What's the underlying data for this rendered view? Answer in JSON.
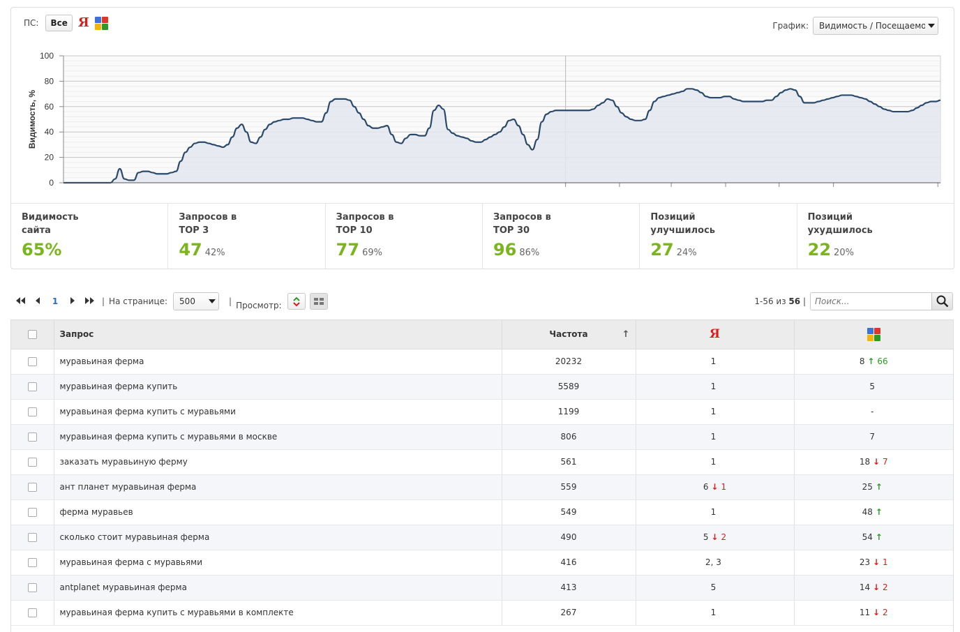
{
  "filter": {
    "ps_label": "ПС:",
    "all_label": "Все",
    "yandex_letter": "Я"
  },
  "graph_select": {
    "label": "График:",
    "value": "Видимость / Посещаемость"
  },
  "chart_data": {
    "type": "area",
    "ylabel": "Видимость, %",
    "ylim": [
      0,
      100
    ],
    "yticks": [
      "0",
      "20",
      "40",
      "60",
      "80",
      "100"
    ],
    "values": [
      0,
      0,
      0,
      0,
      0,
      0,
      0,
      0,
      0,
      0,
      0,
      3,
      11,
      3,
      2,
      2,
      8,
      9,
      9,
      8,
      7,
      7,
      7,
      8,
      9,
      17,
      24,
      28,
      31,
      32,
      32,
      31,
      30,
      29,
      28,
      30,
      36,
      43,
      46,
      40,
      32,
      31,
      36,
      42,
      46,
      48,
      49,
      50,
      50,
      51,
      51,
      51,
      50,
      49,
      48,
      48,
      55,
      64,
      66,
      66,
      66,
      65,
      60,
      55,
      50,
      45,
      43,
      43,
      44,
      45,
      38,
      32,
      31,
      35,
      38,
      38,
      37,
      37,
      43,
      57,
      61,
      58,
      42,
      39,
      37,
      36,
      35,
      33,
      32,
      32,
      34,
      36,
      38,
      40,
      44,
      49,
      50,
      45,
      38,
      30,
      26,
      34,
      48,
      54,
      56,
      57,
      57,
      57,
      57,
      57,
      57,
      57,
      57,
      58,
      61,
      63,
      66,
      65,
      60,
      55,
      52,
      50,
      49,
      49,
      50,
      57,
      64,
      67,
      68,
      69,
      70,
      71,
      72,
      74,
      74,
      73,
      71,
      68,
      67,
      67,
      67,
      68,
      68,
      66,
      65,
      64,
      64,
      64,
      64,
      64,
      65,
      65,
      68,
      71,
      73,
      74,
      73,
      68,
      63,
      63,
      63,
      64,
      65,
      66,
      67,
      68,
      69,
      69,
      69,
      68,
      67,
      66,
      64,
      62,
      60,
      58,
      57,
      56,
      56,
      56,
      56,
      57,
      59,
      61,
      63,
      64,
      64,
      65
    ]
  },
  "stats": [
    {
      "title": "Видимость сайта",
      "value": "65%",
      "pct": ""
    },
    {
      "title": "Запросов в TOP 3",
      "value": "47",
      "pct": "42%"
    },
    {
      "title": "Запросов в TOP 10",
      "value": "77",
      "pct": "69%"
    },
    {
      "title": "Запросов в TOP 30",
      "value": "96",
      "pct": "86%"
    },
    {
      "title": "Позиций улучшилось",
      "value": "27",
      "pct": "24%"
    },
    {
      "title": "Позиций ухудшилось",
      "value": "22",
      "pct": "20%"
    }
  ],
  "toolbar": {
    "page": "1",
    "sep": "|",
    "per_page_label": "На странице:",
    "per_page_value": "500",
    "view_label": "Просмотр:",
    "range": "1-56 из",
    "total": "56",
    "search_placeholder": "Поиск..."
  },
  "table": {
    "headers": {
      "query": "Запрос",
      "freq": "Частота",
      "sort_arrow": "↑",
      "yandex": "Я"
    },
    "rows": [
      {
        "q": "муравьиная ферма",
        "f": "20232",
        "y": "1",
        "y_dir": "",
        "y_delta": "",
        "g": "8",
        "g_dir": "up",
        "g_delta": "66"
      },
      {
        "q": "муравьиная ферма купить",
        "f": "5589",
        "y": "1",
        "y_dir": "",
        "y_delta": "",
        "g": "5",
        "g_dir": "",
        "g_delta": ""
      },
      {
        "q": "муравьиная ферма купить с муравьями",
        "f": "1199",
        "y": "1",
        "y_dir": "",
        "y_delta": "",
        "g": "-",
        "g_dir": "",
        "g_delta": ""
      },
      {
        "q": "муравьиная ферма купить с муравьями в москве",
        "f": "806",
        "y": "1",
        "y_dir": "",
        "y_delta": "",
        "g": "7",
        "g_dir": "",
        "g_delta": ""
      },
      {
        "q": "заказать муравьиную ферму",
        "f": "561",
        "y": "1",
        "y_dir": "",
        "y_delta": "",
        "g": "18",
        "g_dir": "down",
        "g_delta": "7"
      },
      {
        "q": "ант планет муравьиная ферма",
        "f": "559",
        "y": "6",
        "y_dir": "down",
        "y_delta": "1",
        "g": "25",
        "g_dir": "up",
        "g_delta": ""
      },
      {
        "q": "ферма муравьев",
        "f": "549",
        "y": "1",
        "y_dir": "",
        "y_delta": "",
        "g": "48",
        "g_dir": "up",
        "g_delta": ""
      },
      {
        "q": "сколько стоит муравьиная ферма",
        "f": "490",
        "y": "5",
        "y_dir": "down",
        "y_delta": "2",
        "g": "54",
        "g_dir": "up",
        "g_delta": ""
      },
      {
        "q": "муравьиная ферма с муравьями",
        "f": "416",
        "y": "2, 3",
        "y_dir": "",
        "y_delta": "",
        "g": "23",
        "g_dir": "down",
        "g_delta": "1"
      },
      {
        "q": "antplanet муравьиная ферма",
        "f": "413",
        "y": "5",
        "y_dir": "",
        "y_delta": "",
        "g": "14",
        "g_dir": "down",
        "g_delta": "2"
      },
      {
        "q": "муравьиная ферма купить с муравьями в комплекте",
        "f": "267",
        "y": "1",
        "y_dir": "",
        "y_delta": "",
        "g": "11",
        "g_dir": "down",
        "g_delta": "2"
      }
    ]
  },
  "colors": {
    "accent_green": "#7ab51d",
    "up_green": "#2d9a27",
    "down_red": "#e01a1a",
    "line": "#2b4a6b",
    "area": "#e3e8ee",
    "link_blue": "#2a6ac8"
  }
}
